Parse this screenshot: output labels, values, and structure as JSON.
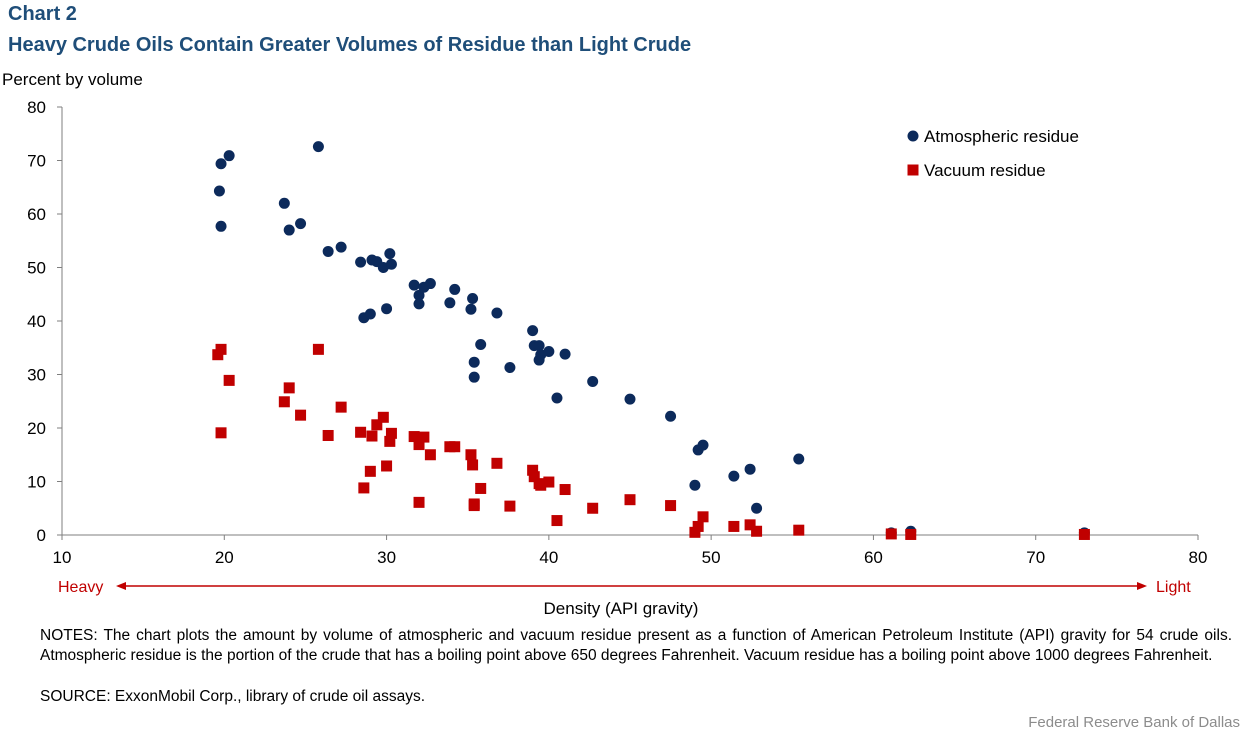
{
  "header": {
    "chart_label": "Chart 2",
    "title": "Heavy Crude Oils Contain Greater Volumes of Residue than Light Crude"
  },
  "chart_data": {
    "type": "scatter",
    "title": "Heavy Crude Oils Contain Greater Volumes of Residue than Light Crude",
    "xlabel": "Density (API gravity)",
    "ylabel": "Percent by volume",
    "xlim": [
      10,
      80
    ],
    "ylim": [
      0,
      80
    ],
    "xticks": [
      10,
      20,
      30,
      40,
      50,
      60,
      70,
      80
    ],
    "yticks": [
      0,
      10,
      20,
      30,
      40,
      50,
      60,
      70,
      80
    ],
    "grid": false,
    "legend_position": "top-right",
    "arrow_labels": {
      "left": "Heavy",
      "right": "Light"
    },
    "series": [
      {
        "name": "Atmospheric residue",
        "marker": "circle",
        "color": "#0c2a5b",
        "points": [
          [
            19.7,
            64.3
          ],
          [
            19.8,
            57.7
          ],
          [
            19.8,
            69.4
          ],
          [
            20.3,
            70.9
          ],
          [
            23.7,
            62.0
          ],
          [
            24.0,
            57.0
          ],
          [
            24.7,
            58.2
          ],
          [
            25.8,
            72.6
          ],
          [
            26.4,
            53.0
          ],
          [
            27.2,
            53.8
          ],
          [
            28.4,
            51.0
          ],
          [
            28.6,
            40.6
          ],
          [
            29.0,
            41.3
          ],
          [
            29.1,
            51.4
          ],
          [
            29.4,
            51.1
          ],
          [
            29.8,
            50.0
          ],
          [
            30.0,
            42.3
          ],
          [
            30.2,
            52.6
          ],
          [
            30.3,
            50.6
          ],
          [
            31.7,
            46.7
          ],
          [
            32.0,
            44.8
          ],
          [
            32.0,
            43.2
          ],
          [
            32.3,
            46.3
          ],
          [
            32.7,
            47.0
          ],
          [
            33.9,
            43.4
          ],
          [
            34.2,
            45.9
          ],
          [
            35.2,
            42.2
          ],
          [
            35.3,
            44.2
          ],
          [
            35.4,
            32.3
          ],
          [
            35.4,
            29.5
          ],
          [
            35.8,
            35.6
          ],
          [
            36.8,
            41.5
          ],
          [
            37.6,
            31.3
          ],
          [
            39.0,
            38.2
          ],
          [
            39.1,
            35.4
          ],
          [
            39.4,
            35.4
          ],
          [
            39.5,
            33.7
          ],
          [
            39.4,
            32.7
          ],
          [
            40.0,
            34.3
          ],
          [
            40.5,
            25.6
          ],
          [
            41.0,
            33.8
          ],
          [
            42.7,
            28.7
          ],
          [
            45.0,
            25.4
          ],
          [
            47.5,
            22.2
          ],
          [
            49.0,
            9.3
          ],
          [
            49.2,
            15.9
          ],
          [
            49.5,
            16.8
          ],
          [
            51.4,
            11.0
          ],
          [
            52.4,
            12.3
          ],
          [
            52.8,
            5.0
          ],
          [
            55.4,
            14.2
          ],
          [
            61.1,
            0.4
          ],
          [
            62.3,
            0.7
          ],
          [
            73.0,
            0.4
          ]
        ]
      },
      {
        "name": "Vacuum residue",
        "marker": "square",
        "color": "#c00000",
        "points": [
          [
            19.6,
            33.7
          ],
          [
            19.8,
            34.7
          ],
          [
            19.8,
            19.1
          ],
          [
            20.3,
            28.9
          ],
          [
            23.7,
            24.9
          ],
          [
            24.0,
            27.5
          ],
          [
            24.7,
            22.4
          ],
          [
            25.8,
            34.7
          ],
          [
            26.4,
            18.6
          ],
          [
            27.2,
            23.9
          ],
          [
            28.4,
            19.2
          ],
          [
            28.6,
            8.8
          ],
          [
            29.0,
            11.9
          ],
          [
            29.1,
            18.5
          ],
          [
            29.4,
            20.6
          ],
          [
            29.8,
            22.0
          ],
          [
            30.0,
            12.9
          ],
          [
            30.2,
            17.5
          ],
          [
            30.3,
            19.0
          ],
          [
            31.7,
            18.4
          ],
          [
            32.0,
            6.1
          ],
          [
            32.0,
            16.9
          ],
          [
            32.3,
            18.3
          ],
          [
            32.7,
            15.0
          ],
          [
            33.9,
            16.5
          ],
          [
            34.2,
            16.5
          ],
          [
            35.2,
            15.0
          ],
          [
            35.3,
            13.1
          ],
          [
            35.4,
            5.8
          ],
          [
            35.4,
            5.5
          ],
          [
            35.8,
            8.7
          ],
          [
            36.8,
            13.4
          ],
          [
            37.6,
            5.4
          ],
          [
            39.0,
            12.1
          ],
          [
            39.1,
            10.9
          ],
          [
            39.4,
            9.6
          ],
          [
            39.5,
            9.3
          ],
          [
            40.0,
            9.9
          ],
          [
            40.5,
            2.7
          ],
          [
            41.0,
            8.5
          ],
          [
            42.7,
            5.0
          ],
          [
            45.0,
            6.6
          ],
          [
            47.5,
            5.5
          ],
          [
            49.0,
            0.5
          ],
          [
            49.2,
            1.6
          ],
          [
            49.5,
            3.4
          ],
          [
            51.4,
            1.6
          ],
          [
            52.4,
            1.9
          ],
          [
            52.8,
            0.7
          ],
          [
            55.4,
            0.9
          ],
          [
            61.1,
            0.2
          ],
          [
            62.3,
            0.1
          ],
          [
            73.0,
            0.1
          ]
        ]
      }
    ]
  },
  "notes": "NOTES: The chart plots the amount by volume of atmospheric and vacuum residue present as a function of American Petroleum Institute (API) gravity for 54 crude oils. Atmospheric residue is the portion of the crude that has a boiling point above 650 degrees Fahrenheit. Vacuum residue has a boiling point above 1000 degrees Fahrenheit.",
  "source": "SOURCE: ExxonMobil Corp., library of crude oil assays.",
  "credit": "Federal Reserve Bank of Dallas"
}
